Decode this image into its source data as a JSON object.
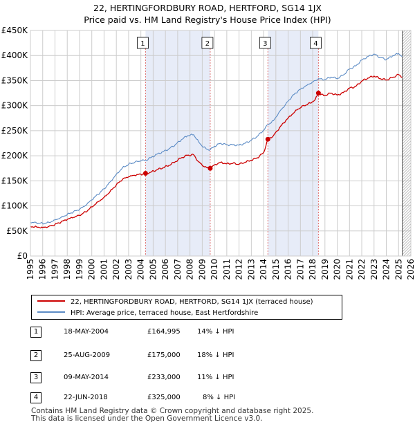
{
  "title_line1": "22, HERTINGFORDBURY ROAD, HERTFORD, SG14 1JX",
  "title_line2": "Price paid vs. HM Land Registry's House Price Index (HPI)",
  "chart_data": {
    "type": "line",
    "title": "22, HERTINGFORDBURY ROAD, HERTFORD, SG14 1JX — Price paid vs. HM Land Registry's House Price Index (HPI)",
    "xlabel": "",
    "ylabel": "",
    "xlim": [
      1995,
      2026
    ],
    "ylim": [
      0,
      450000
    ],
    "x_ticks": [
      1995,
      1996,
      1997,
      1998,
      1999,
      2000,
      2001,
      2002,
      2003,
      2004,
      2005,
      2006,
      2007,
      2008,
      2009,
      2010,
      2011,
      2012,
      2013,
      2014,
      2015,
      2016,
      2017,
      2018,
      2019,
      2020,
      2021,
      2022,
      2023,
      2024,
      2025,
      2026
    ],
    "y_ticks": [
      {
        "value": 0,
        "label": "£0"
      },
      {
        "value": 50000,
        "label": "£50K"
      },
      {
        "value": 100000,
        "label": "£100K"
      },
      {
        "value": 150000,
        "label": "£150K"
      },
      {
        "value": 200000,
        "label": "£200K"
      },
      {
        "value": 250000,
        "label": "£250K"
      },
      {
        "value": 300000,
        "label": "£300K"
      },
      {
        "value": 350000,
        "label": "£350K"
      },
      {
        "value": 400000,
        "label": "£400K"
      },
      {
        "value": 450000,
        "label": "£450K"
      }
    ],
    "grid": true,
    "data_end": 2025.3,
    "series": [
      {
        "name": "22, HERTINGFORDBURY ROAD, HERTFORD, SG14 1JX (terraced house)",
        "color": "#cc0000",
        "x": [
          1995,
          1995.5,
          1996,
          1996.5,
          1997,
          1997.5,
          1998,
          1998.5,
          1999,
          1999.5,
          2000,
          2000.5,
          2001,
          2001.5,
          2002,
          2002.5,
          2003,
          2003.5,
          2004,
          2004.38,
          2004.8,
          2005.3,
          2005.8,
          2006.3,
          2006.8,
          2007.3,
          2007.8,
          2008.3,
          2008.7,
          2009.1,
          2009.4,
          2009.65,
          2010,
          2010.5,
          2011,
          2011.5,
          2012,
          2012.5,
          2013,
          2013.5,
          2014,
          2014.35,
          2014.8,
          2015.3,
          2015.8,
          2016.3,
          2016.8,
          2017.3,
          2017.8,
          2018.2,
          2018.47,
          2018.9,
          2019.5,
          2020,
          2020.5,
          2021,
          2021.5,
          2022,
          2022.5,
          2023,
          2023.5,
          2024,
          2024.5,
          2025,
          2025.3
        ],
        "values": [
          59000,
          58000,
          57000,
          59000,
          63000,
          68000,
          73000,
          77000,
          81000,
          88000,
          98000,
          108000,
          117000,
          129000,
          142000,
          153000,
          158000,
          161000,
          163000,
          164995,
          167000,
          172000,
          176000,
          181000,
          188000,
          196000,
          201000,
          202000,
          188000,
          179000,
          176000,
          175000,
          182000,
          187000,
          184000,
          185000,
          183000,
          187000,
          191000,
          196000,
          206000,
          233000,
          240000,
          256000,
          270000,
          282000,
          293000,
          300000,
          305000,
          312000,
          325000,
          320000,
          325000,
          321000,
          326000,
          335000,
          338000,
          349000,
          355000,
          359000,
          354000,
          351000,
          356000,
          362000,
          357000
        ]
      },
      {
        "name": "HPI: Average price, terraced house, East Hertfordshire",
        "color": "#5b8bc5",
        "x": [
          1995,
          1995.5,
          1996,
          1996.5,
          1997,
          1997.5,
          1998,
          1998.5,
          1999,
          1999.5,
          2000,
          2000.5,
          2001,
          2001.5,
          2002,
          2002.5,
          2003,
          2003.5,
          2004,
          2004.38,
          2004.8,
          2005.3,
          2005.8,
          2006.3,
          2006.8,
          2007.3,
          2007.8,
          2008.3,
          2008.7,
          2009.1,
          2009.4,
          2009.65,
          2010,
          2010.5,
          2011,
          2011.5,
          2012,
          2012.5,
          2013,
          2013.5,
          2014,
          2014.35,
          2014.8,
          2015.3,
          2015.8,
          2016.3,
          2016.8,
          2017.3,
          2017.8,
          2018.2,
          2018.47,
          2018.9,
          2019.5,
          2020,
          2020.5,
          2021,
          2021.5,
          2022,
          2022.5,
          2023,
          2023.5,
          2024,
          2024.5,
          2025,
          2025.3
        ],
        "values": [
          67000,
          66000,
          65000,
          67000,
          72000,
          77000,
          83000,
          88000,
          93000,
          101000,
          112000,
          123000,
          134000,
          148000,
          163000,
          176000,
          183000,
          187000,
          190000,
          191000,
          196000,
          203000,
          208000,
          214000,
          222000,
          232000,
          240000,
          242000,
          228000,
          217000,
          213000,
          212000,
          219000,
          225000,
          222000,
          222000,
          221000,
          225000,
          231000,
          239000,
          251000,
          262000,
          270000,
          288000,
          303000,
          318000,
          329000,
          337000,
          344000,
          350000,
          354000,
          351000,
          357000,
          354000,
          361000,
          373000,
          379000,
          391000,
          398000,
          403000,
          396000,
          392000,
          399000,
          404000,
          398000
        ]
      }
    ],
    "sales": [
      {
        "id": "1",
        "x": 2004.38,
        "value": 164995
      },
      {
        "id": "2",
        "x": 2009.65,
        "value": 175000
      },
      {
        "id": "3",
        "x": 2014.35,
        "value": 233000
      },
      {
        "id": "4",
        "x": 2018.47,
        "value": 325000
      }
    ],
    "highlight_spans": [
      [
        2004.38,
        2009.65
      ],
      [
        2014.35,
        2018.47
      ]
    ]
  },
  "legend": {
    "property_label": "22, HERTINGFORDBURY ROAD, HERTFORD, SG14 1JX (terraced house)",
    "hpi_label": "HPI: Average price, terraced house, East Hertfordshire"
  },
  "table": [
    {
      "num": "1",
      "date": "18-MAY-2004",
      "price": "£164,995",
      "pct": "14% ↓ HPI"
    },
    {
      "num": "2",
      "date": "25-AUG-2009",
      "price": "£175,000",
      "pct": "18% ↓ HPI"
    },
    {
      "num": "3",
      "date": "09-MAY-2014",
      "price": "£233,000",
      "pct": "11% ↓ HPI"
    },
    {
      "num": "4",
      "date": "22-JUN-2018",
      "price": "£325,000",
      "pct": "8% ↓ HPI"
    }
  ],
  "footer": {
    "line1": "Contains HM Land Registry data © Crown copyright and database right 2025.",
    "line2": "This data is licensed under the Open Government Licence v3.0."
  }
}
